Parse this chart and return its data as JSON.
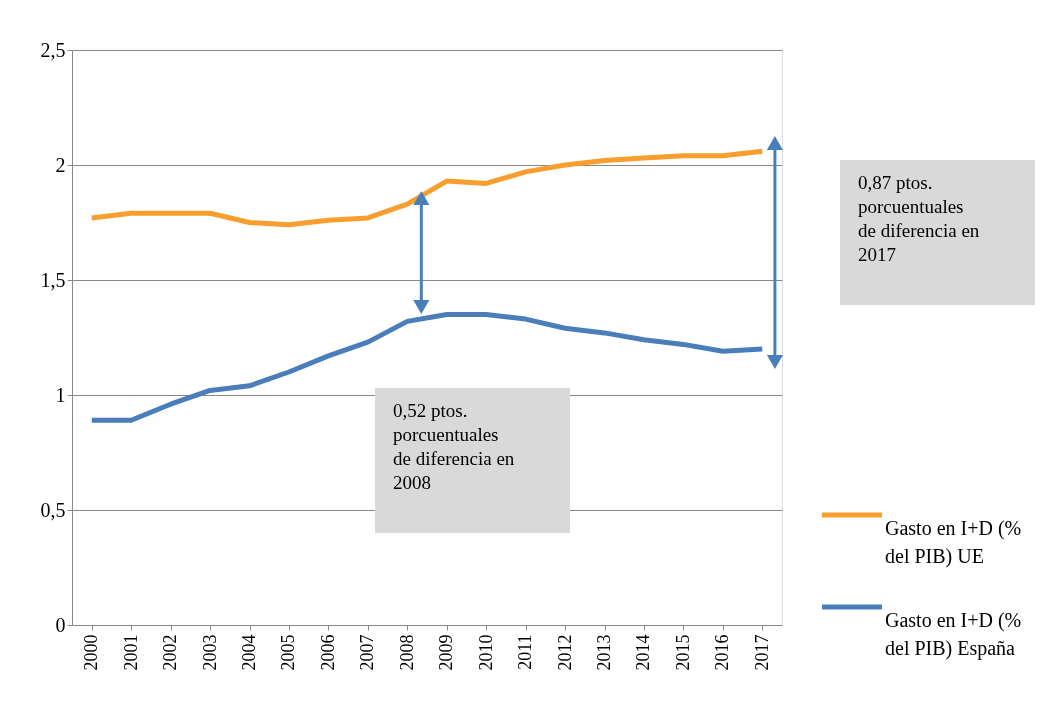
{
  "chart_data": {
    "type": "line",
    "categories": [
      "2000",
      "2001",
      "2002",
      "2003",
      "2004",
      "2005",
      "2006",
      "2007",
      "2008",
      "2009",
      "2010",
      "2011",
      "2012",
      "2013",
      "2014",
      "2015",
      "2016",
      "2017"
    ],
    "series": [
      {
        "name": "Gasto en I+D (% del PIB) UE",
        "color": "#f79e2e",
        "values": [
          1.77,
          1.79,
          1.79,
          1.79,
          1.75,
          1.74,
          1.76,
          1.77,
          1.83,
          1.93,
          1.92,
          1.97,
          2.0,
          2.02,
          2.03,
          2.04,
          2.04,
          2.06
        ]
      },
      {
        "name": "Gasto en I+D (% del PIB) España",
        "color": "#4a7ebb",
        "values": [
          0.89,
          0.89,
          0.96,
          1.02,
          1.04,
          1.1,
          1.17,
          1.23,
          1.32,
          1.35,
          1.35,
          1.33,
          1.29,
          1.27,
          1.24,
          1.22,
          1.19,
          1.2
        ]
      }
    ],
    "ylim": [
      0,
      2.5
    ],
    "yticks": [
      0,
      {
        "value": 0.5,
        "label": "0,5"
      },
      1,
      {
        "value": 1.5,
        "label": "1,5"
      },
      2,
      {
        "value": 2.5,
        "label": "2,5"
      }
    ],
    "grid": "y",
    "legend": "right",
    "marker": "none",
    "line_style": "solid",
    "annotations": [
      "0,52 ptos.\nporcuentuales\nde diferencia en\n2008",
      "0,87 ptos.\nporcuentuales\nde diferencia en\n2017"
    ]
  }
}
